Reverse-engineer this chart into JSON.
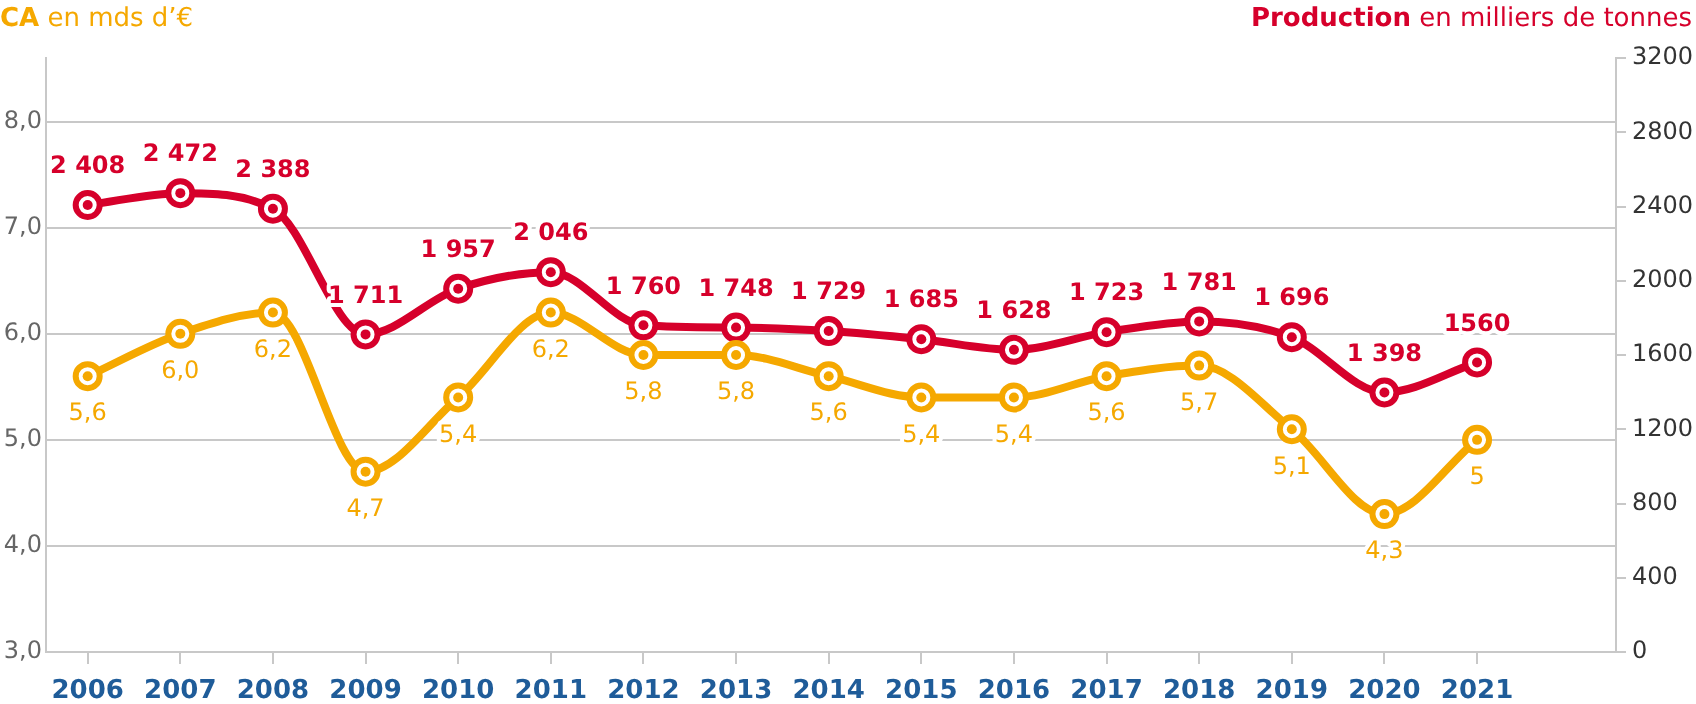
{
  "chart_data": {
    "type": "line",
    "ylabel": "CA en mds d’€",
    "y2label": "Production en milliers de tonnes",
    "categories": [
      "2006",
      "2007",
      "2008",
      "2009",
      "2010",
      "2011",
      "2012",
      "2013",
      "2014",
      "2015",
      "2016",
      "2017",
      "2018",
      "2019",
      "2020",
      "2021"
    ],
    "series": [
      {
        "color": "#f5a800",
        "axis": "y",
        "values": [
          5.6,
          6.0,
          6.2,
          4.7,
          5.4,
          6.2,
          5.8,
          5.8,
          5.6,
          5.4,
          5.4,
          5.6,
          5.7,
          5.1,
          4.3,
          5
        ],
        "value_labels": [
          "5,6",
          "6,0",
          "6,2",
          "4,7",
          "5,4",
          "6,2",
          "5,8",
          "5,8",
          "5,6",
          "5,4",
          "5,4",
          "5,6",
          "5,7",
          "5,1",
          "4,3",
          "5"
        ]
      },
      {
        "color": "#d6002b",
        "axis": "y2",
        "values": [
          2408,
          2472,
          2388,
          1711,
          1957,
          2046,
          1760,
          1748,
          1729,
          1685,
          1628,
          1723,
          1781,
          1696,
          1398,
          1560
        ],
        "value_labels": [
          "2 408",
          "2 472",
          "2 388",
          "1 711",
          "1 957",
          "2 046",
          "1 760",
          "1 748",
          "1 729",
          "1 685",
          "1 628",
          "1 723",
          "1 781",
          "1 696",
          "1 398",
          "1560"
        ]
      }
    ],
    "ylim": [
      3,
      8.6
    ],
    "yticks": [
      {
        "value": 3,
        "label": "3,0"
      },
      {
        "value": 4,
        "label": "4,0"
      },
      {
        "value": 5,
        "label": "5,0"
      },
      {
        "value": 6,
        "label": "6,0"
      },
      {
        "value": 7,
        "label": "7,0"
      },
      {
        "value": 8,
        "label": "8,0"
      }
    ],
    "y2lim": [
      0,
      3200
    ],
    "y2ticks": [
      0,
      400,
      800,
      1200,
      1600,
      2000,
      2400,
      2800,
      3200
    ],
    "grid": "y",
    "legend": false,
    "marker": "circle",
    "line_style": "solid"
  }
}
